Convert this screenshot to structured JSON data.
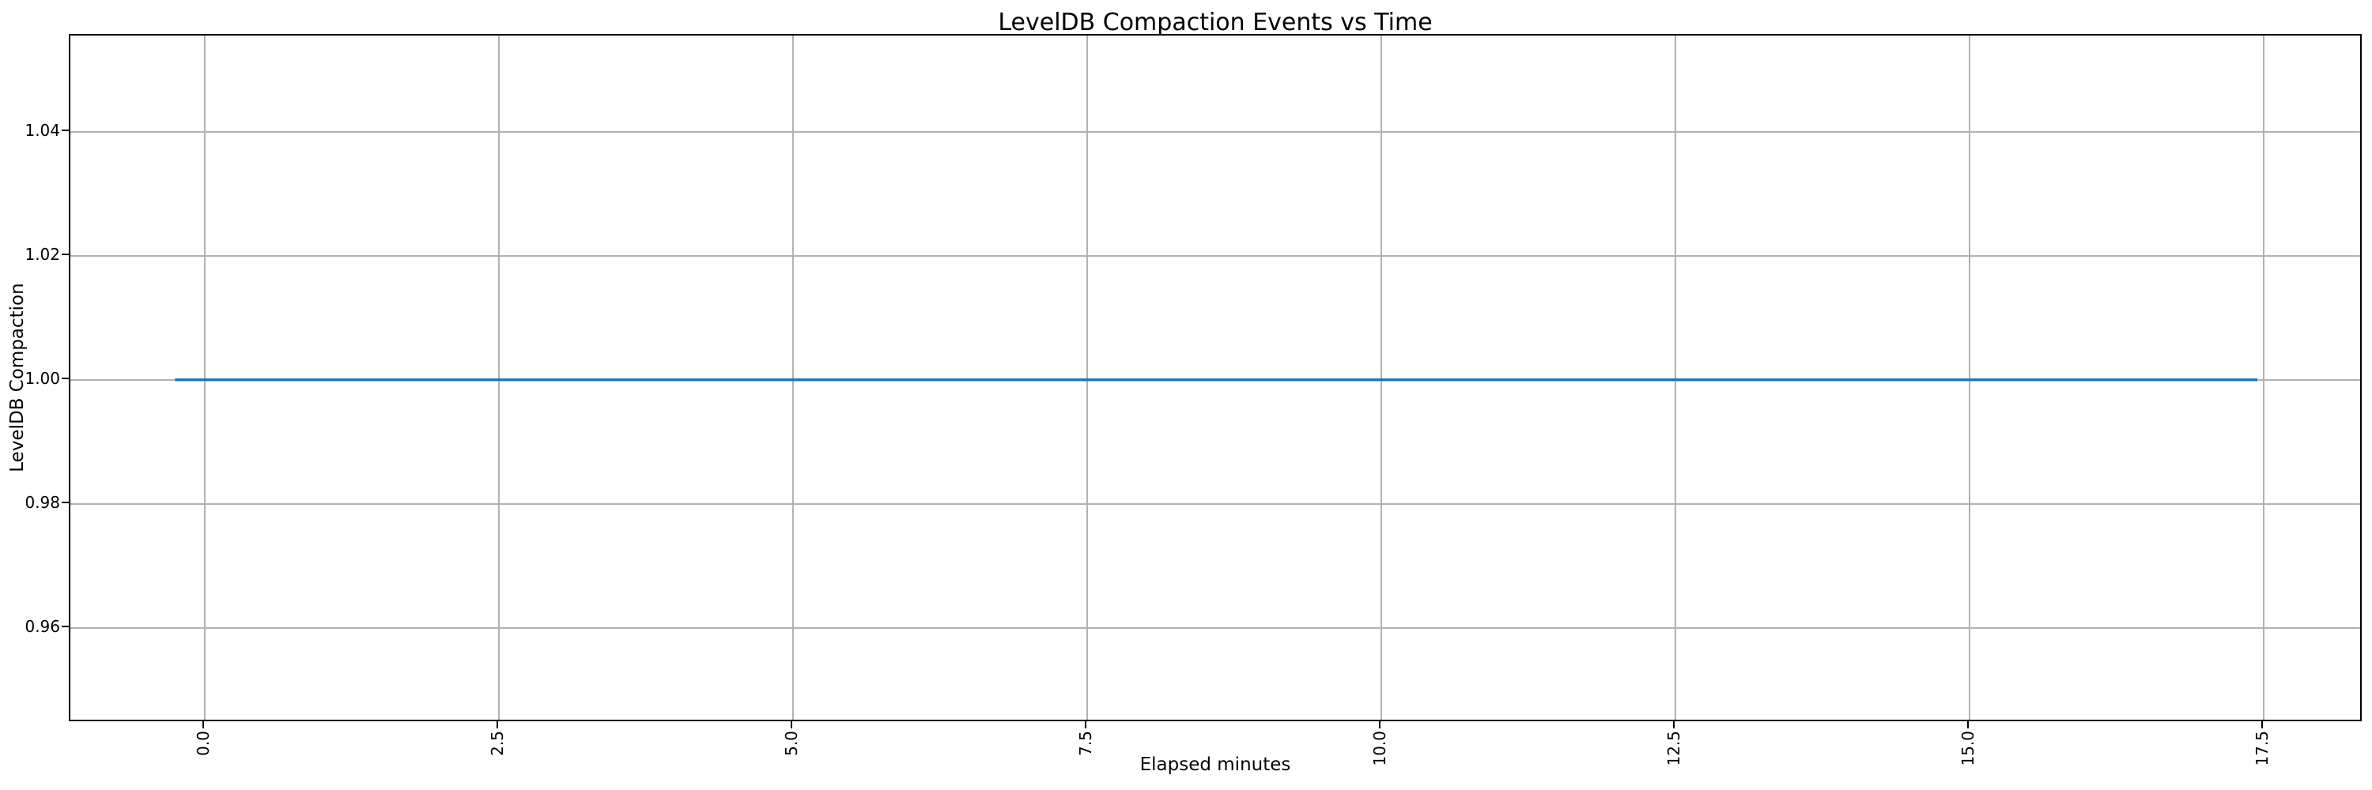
{
  "chart_data": {
    "type": "line",
    "title": "LevelDB Compaction Events vs Time",
    "xlabel": "Elapsed minutes",
    "ylabel": "LevelDB Compaction",
    "xlim": [
      -1.14,
      18.35
    ],
    "ylim": [
      0.9447,
      1.0555
    ],
    "xticks": [
      0.0,
      2.5,
      5.0,
      7.5,
      10.0,
      12.5,
      15.0,
      17.5
    ],
    "xtick_labels": [
      "0.0",
      "2.5",
      "5.0",
      "7.5",
      "10.0",
      "12.5",
      "15.0",
      "17.5"
    ],
    "xtick_rotation": 90,
    "yticks": [
      0.96,
      0.98,
      1.0,
      1.02,
      1.04
    ],
    "ytick_labels": [
      "0.96",
      "0.98",
      "1.00",
      "1.02",
      "1.04"
    ],
    "grid": true,
    "legend": false,
    "colors": {
      "line": "#1f77b4",
      "grid": "#b2b2b2",
      "spine": "#000000",
      "text": "#000000",
      "background": "#ffffff"
    },
    "series": [
      {
        "name": "LevelDB Compaction",
        "color": "#1f77b4",
        "x": [
          -0.25,
          17.45
        ],
        "y": [
          1.0,
          1.0
        ]
      }
    ]
  }
}
